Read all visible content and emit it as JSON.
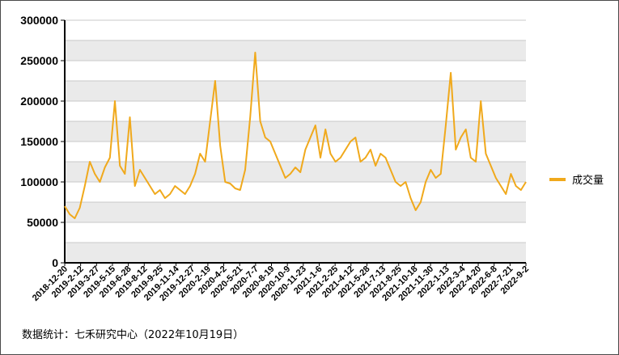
{
  "chart_data": {
    "type": "line",
    "legend_position": "right",
    "grid": true,
    "colors": {
      "line": "#F0A91C",
      "band_dark": "#EAEAEA",
      "band_light": "#FFFFFF",
      "grid": "#C8C8C8",
      "axis": "#000000"
    },
    "ylim": [
      0,
      300000
    ],
    "y_ticks": [
      "0",
      "50000",
      "100000",
      "150000",
      "200000",
      "250000",
      "300000"
    ],
    "x_ticks": [
      "2018-12-20",
      "2019-2-12",
      "2019-3-27",
      "2019-5-15",
      "2019-6-28",
      "2019-8-12",
      "2019-9-25",
      "2019-11-14",
      "2019-12-27",
      "2020-2-19",
      "2020-4-2",
      "2020-5-21",
      "2020-7-7",
      "2020-8-19",
      "2020-10-9",
      "2020-11-23",
      "2021-1-6",
      "2021-2-25",
      "2021-4-12",
      "2021-5-28",
      "2021-7-13",
      "2021-8-25",
      "2021-10-18",
      "2021-11-30",
      "2022-1-13",
      "2022-3-4",
      "2022-4-20",
      "2022-6-8",
      "2022-7-21",
      "2022-9-2"
    ],
    "series": [
      {
        "name": "成交量",
        "x": [
          "2018-12-20",
          "2019-1-3",
          "2019-1-17",
          "2019-2-12",
          "2019-2-26",
          "2019-3-12",
          "2019-3-27",
          "2019-4-10",
          "2019-4-24",
          "2019-5-6",
          "2019-5-15",
          "2019-5-29",
          "2019-6-12",
          "2019-6-28",
          "2019-7-12",
          "2019-7-26",
          "2019-8-12",
          "2019-8-26",
          "2019-9-9",
          "2019-9-25",
          "2019-10-9",
          "2019-10-23",
          "2019-11-14",
          "2019-11-28",
          "2019-12-12",
          "2019-12-27",
          "2020-1-10",
          "2020-1-24",
          "2020-2-10",
          "2020-2-19",
          "2020-3-4",
          "2020-3-18",
          "2020-4-2",
          "2020-4-16",
          "2020-5-6",
          "2020-5-21",
          "2020-6-4",
          "2020-6-18",
          "2020-7-7",
          "2020-7-21",
          "2020-8-4",
          "2020-8-19",
          "2020-9-2",
          "2020-9-16",
          "2020-10-9",
          "2020-10-23",
          "2020-11-6",
          "2020-11-23",
          "2020-12-7",
          "2020-12-21",
          "2021-1-6",
          "2021-1-20",
          "2021-2-3",
          "2021-2-25",
          "2021-3-11",
          "2021-3-25",
          "2021-4-12",
          "2021-4-26",
          "2021-5-12",
          "2021-5-28",
          "2021-6-11",
          "2021-6-25",
          "2021-7-13",
          "2021-7-27",
          "2021-8-10",
          "2021-8-25",
          "2021-9-8",
          "2021-9-24",
          "2021-10-18",
          "2021-11-1",
          "2021-11-15",
          "2021-11-30",
          "2021-12-14",
          "2021-12-28",
          "2022-1-13",
          "2022-1-27",
          "2022-2-17",
          "2022-3-4",
          "2022-3-18",
          "2022-4-1",
          "2022-4-20",
          "2022-5-6",
          "2022-5-20",
          "2022-6-8",
          "2022-6-22",
          "2022-7-6",
          "2022-7-21",
          "2022-8-4",
          "2022-8-18",
          "2022-9-2",
          "2022-9-16",
          "2022-10-10",
          "2022-10-19"
        ],
        "values": [
          70000,
          60000,
          55000,
          68000,
          95000,
          125000,
          110000,
          100000,
          118000,
          130000,
          200000,
          120000,
          110000,
          180000,
          95000,
          115000,
          105000,
          95000,
          85000,
          90000,
          80000,
          85000,
          95000,
          90000,
          85000,
          95000,
          110000,
          135000,
          125000,
          175000,
          225000,
          145000,
          100000,
          98000,
          92000,
          90000,
          115000,
          180000,
          260000,
          175000,
          155000,
          150000,
          135000,
          120000,
          105000,
          110000,
          118000,
          112000,
          140000,
          155000,
          170000,
          130000,
          165000,
          135000,
          125000,
          130000,
          140000,
          150000,
          155000,
          125000,
          130000,
          140000,
          120000,
          135000,
          130000,
          115000,
          100000,
          95000,
          100000,
          80000,
          65000,
          75000,
          100000,
          115000,
          105000,
          110000,
          170000,
          235000,
          140000,
          155000,
          165000,
          130000,
          125000,
          200000,
          135000,
          120000,
          105000,
          95000,
          85000,
          110000,
          95000,
          90000,
          100000
        ]
      }
    ]
  },
  "footnote": "数据统计：七禾研究中心（2022年10月19日）"
}
